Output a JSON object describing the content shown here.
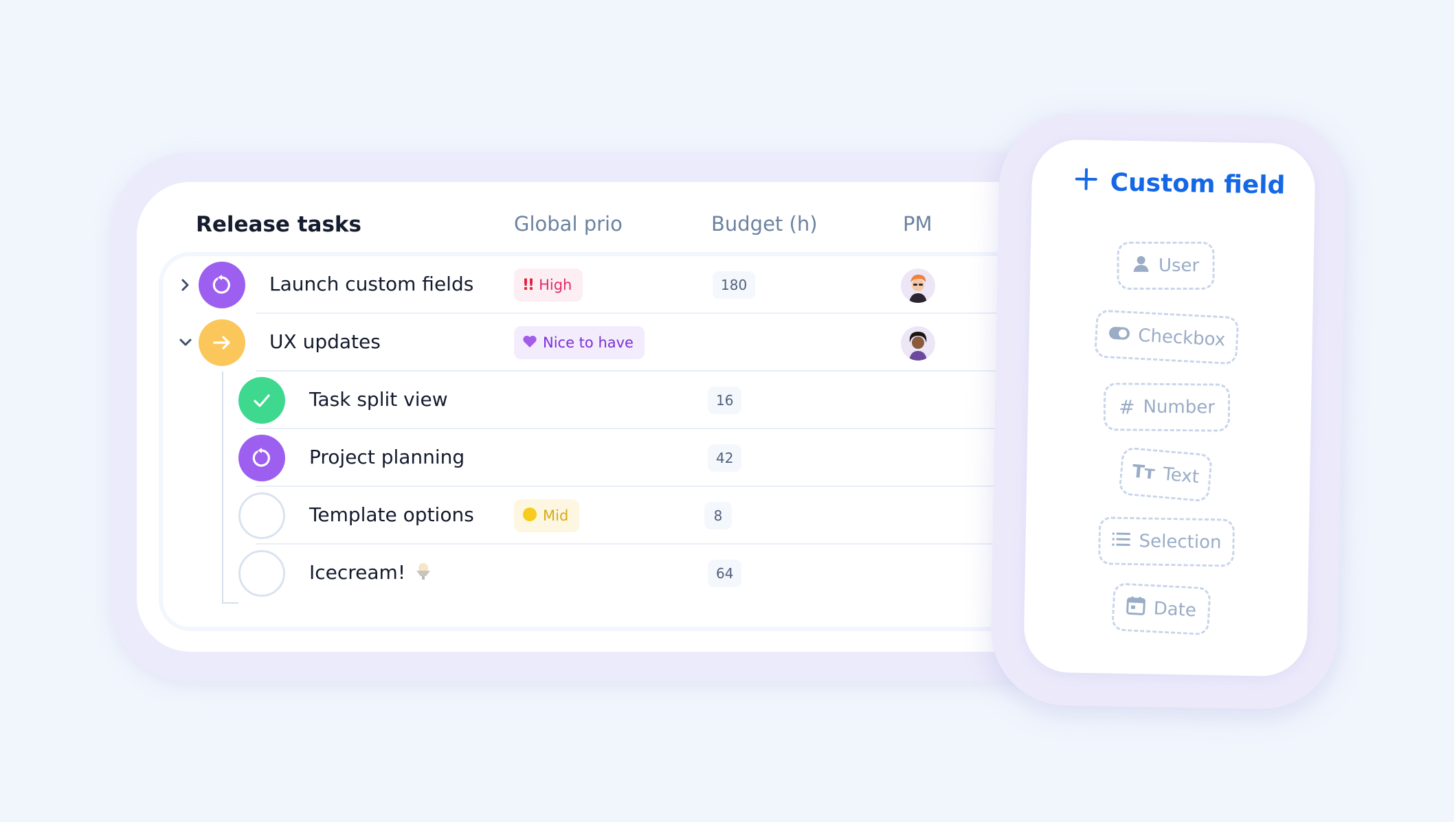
{
  "table": {
    "title": "Release tasks",
    "columns": {
      "prio": "Global prio",
      "budget": "Budget (h)",
      "pm": "PM"
    },
    "rows": [
      {
        "name": "Launch custom fields",
        "status": "in-progress",
        "prio": "High",
        "prio_icon": "double-exclamation-icon",
        "budget": "180",
        "pm": "avatar-orange-hair",
        "expandable": "collapsed"
      },
      {
        "name": "UX updates",
        "status": "next",
        "prio": "Nice to have",
        "prio_icon": "purple-heart-icon",
        "budget": "",
        "pm": "avatar-dark-hair",
        "expandable": "expanded"
      },
      {
        "name": "Task split view",
        "status": "done",
        "prio": "",
        "budget": "16"
      },
      {
        "name": "Project planning",
        "status": "in-progress",
        "prio": "",
        "budget": "42"
      },
      {
        "name": "Template options",
        "status": "open",
        "prio": "Mid",
        "prio_icon": "yellow-circle-icon",
        "budget": "8"
      },
      {
        "name": "Icecream!",
        "name_icon": "icecream-icon",
        "status": "open",
        "prio": "",
        "budget": "64"
      }
    ]
  },
  "custom_field": {
    "title": "Custom field",
    "options": [
      {
        "label": "User",
        "icon": "user-icon"
      },
      {
        "label": "Checkbox",
        "icon": "toggle-icon"
      },
      {
        "label": "Number",
        "icon": "hash-icon"
      },
      {
        "label": "Text",
        "icon": "text-icon"
      },
      {
        "label": "Selection",
        "icon": "list-icon"
      },
      {
        "label": "Date",
        "icon": "calendar-icon"
      }
    ]
  },
  "colors": {
    "background": "#f1f6fd",
    "purple_status": "#9c5ff0",
    "yellow_status": "#fbc75a",
    "green_status": "#3ed98e",
    "accent_blue": "#1468e6",
    "high_badge_bg": "#fdeef3",
    "high_badge_text": "#e02a67",
    "nice_badge_bg": "#f3ecfd",
    "nice_badge_text": "#7a2fd6",
    "mid_badge_bg": "#fdf7e2",
    "mid_badge_text": "#d9a912"
  }
}
